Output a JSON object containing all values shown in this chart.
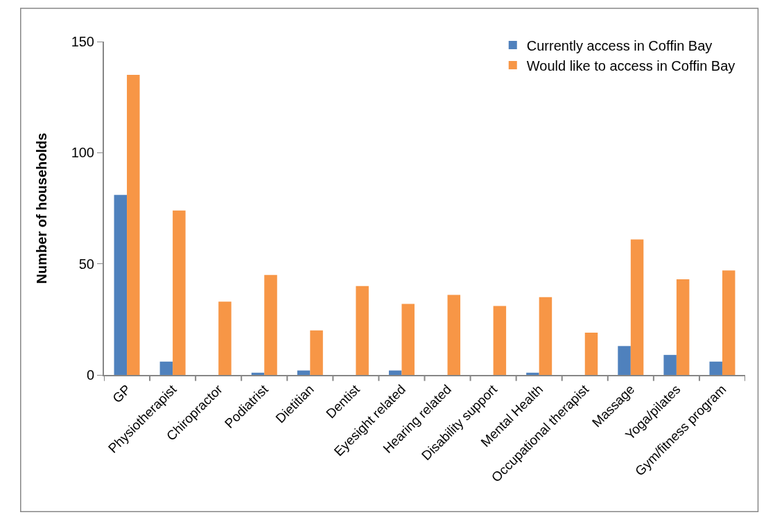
{
  "chart_data": {
    "type": "bar",
    "ylabel": "Number of households",
    "categories": [
      "GP",
      "Physiotherapist",
      "Chiropractor",
      "Podiatrist",
      "Dietitian",
      "Dentist",
      "Eyesight related",
      "Hearing related",
      "Disability support",
      "Mental Health",
      "Occupational therapist",
      "Massage",
      "Yoga/pilates",
      "Gym/fitness program"
    ],
    "series": [
      {
        "name": "Currently access in Coffin Bay",
        "color": "#4f81bd",
        "values": [
          81,
          6,
          0,
          1,
          2,
          0,
          2,
          0,
          0,
          1,
          0,
          13,
          9,
          6
        ]
      },
      {
        "name": "Would like to access in Coffin Bay",
        "color": "#f79646",
        "values": [
          135,
          74,
          33,
          45,
          20,
          40,
          32,
          36,
          31,
          35,
          19,
          61,
          43,
          47
        ]
      }
    ],
    "ylim": [
      0,
      150
    ],
    "yticks": [
      0,
      50,
      100,
      150
    ],
    "legend": "top right"
  }
}
